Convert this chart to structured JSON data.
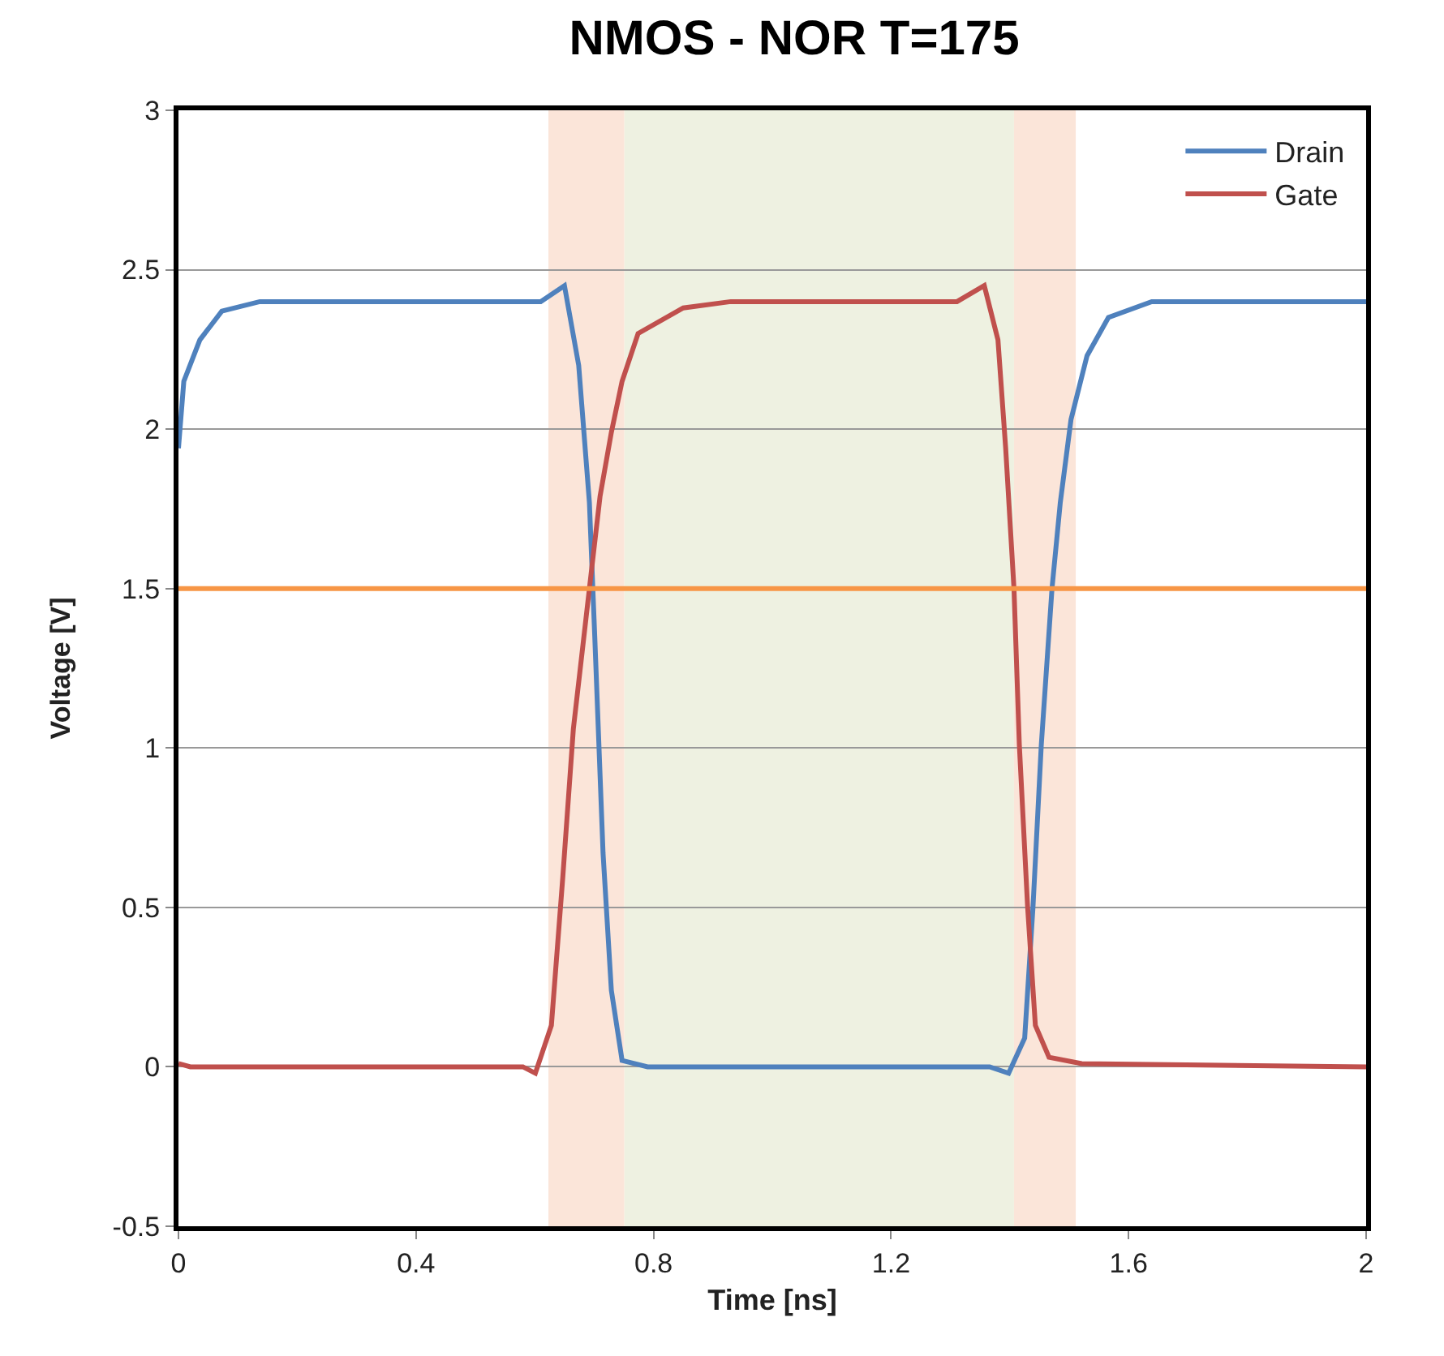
{
  "chart_data": {
    "type": "line",
    "title": "NMOS - NOR T=175",
    "xlabel": "Time [ns]",
    "ylabel": "Voltage [V]",
    "xlim": [
      0,
      2
    ],
    "xticks": [
      0,
      0.4,
      0.8,
      1.2,
      1.6,
      2
    ],
    "ylim": [
      -0.5,
      3
    ],
    "yticks": [
      -0.5,
      0,
      0.5,
      1,
      1.5,
      2,
      2.5,
      3
    ],
    "grid": "y",
    "legend": "top right",
    "marker": "none",
    "line_style": "solid",
    "series": [
      {
        "name": "Drain",
        "color": "#4f81bd",
        "x": [
          0,
          0.009,
          0.036,
          0.073,
          0.137,
          0.61,
          0.65,
          0.674,
          0.692,
          0.701,
          0.715,
          0.729,
          0.747,
          0.79,
          1.366,
          1.398,
          1.425,
          1.439,
          1.453,
          1.471,
          1.485,
          1.503,
          1.53,
          1.566,
          1.639,
          2
        ],
        "values": [
          1.94,
          2.15,
          2.28,
          2.37,
          2.4,
          2.4,
          2.45,
          2.2,
          1.77,
          1.35,
          0.67,
          0.24,
          0.02,
          0,
          0,
          -0.02,
          0.09,
          0.5,
          1.01,
          1.5,
          1.77,
          2.03,
          2.23,
          2.35,
          2.4,
          2.4
        ]
      },
      {
        "name": "Gate",
        "color": "#c0504d",
        "x": [
          0,
          0.02,
          0.58,
          0.601,
          0.628,
          0.647,
          0.665,
          0.692,
          0.71,
          0.729,
          0.747,
          0.774,
          0.85,
          0.93,
          1.311,
          1.357,
          1.38,
          1.393,
          1.407,
          1.416,
          1.43,
          1.443,
          1.466,
          1.521,
          2
        ],
        "values": [
          0.01,
          0,
          0,
          -0.02,
          0.13,
          0.59,
          1.06,
          1.5,
          1.79,
          1.99,
          2.15,
          2.3,
          2.38,
          2.4,
          2.4,
          2.45,
          2.28,
          1.94,
          1.5,
          1.01,
          0.5,
          0.13,
          0.03,
          0.01,
          0
        ]
      }
    ],
    "ref_lines": [
      {
        "axis": "y",
        "value": 1.5,
        "color": "#f79646"
      }
    ],
    "bands": [
      {
        "axis": "x",
        "from": 0.623,
        "to": 0.751,
        "color": "#fbe5d9"
      },
      {
        "axis": "x",
        "from": 0.751,
        "to": 1.407,
        "color": "#eef1e1"
      },
      {
        "axis": "x",
        "from": 1.407,
        "to": 1.511,
        "color": "#fbe5d9"
      }
    ]
  }
}
